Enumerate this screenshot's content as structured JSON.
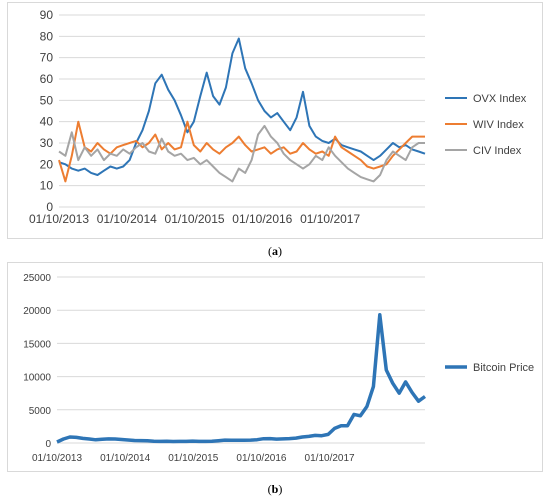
{
  "captions": {
    "a_open": "(",
    "a_letter": "a",
    "a_close": ")",
    "b_open": "(",
    "b_letter": "b",
    "b_close": ")"
  },
  "chart_data": [
    {
      "type": "line",
      "ylim": [
        0,
        90
      ],
      "yticks": [
        0,
        10,
        20,
        30,
        40,
        50,
        60,
        70,
        80,
        90
      ],
      "xtick_labels": [
        "01/10/2013",
        "01/10/2014",
        "01/10/2015",
        "01/10/2016",
        "01/10/2017"
      ],
      "x_range": [
        "2013-10",
        "2018-07"
      ],
      "grid": true,
      "legend_position": "right",
      "series": [
        {
          "name": "OVX Index",
          "color": "#2e75b6",
          "points": [
            [
              "2013-10",
              21
            ],
            [
              "2013-11",
              20
            ],
            [
              "2013-12",
              18
            ],
            [
              "2014-01",
              17
            ],
            [
              "2014-02",
              18
            ],
            [
              "2014-03",
              16
            ],
            [
              "2014-04",
              15
            ],
            [
              "2014-05",
              17
            ],
            [
              "2014-06",
              19
            ],
            [
              "2014-07",
              18
            ],
            [
              "2014-08",
              19
            ],
            [
              "2014-09",
              22
            ],
            [
              "2014-10",
              30
            ],
            [
              "2014-11",
              36
            ],
            [
              "2014-12",
              45
            ],
            [
              "2015-01",
              58
            ],
            [
              "2015-02",
              62
            ],
            [
              "2015-03",
              55
            ],
            [
              "2015-04",
              50
            ],
            [
              "2015-05",
              43
            ],
            [
              "2015-06",
              35
            ],
            [
              "2015-07",
              40
            ],
            [
              "2015-08",
              52
            ],
            [
              "2015-09",
              63
            ],
            [
              "2015-10",
              52
            ],
            [
              "2015-11",
              48
            ],
            [
              "2015-12",
              56
            ],
            [
              "2016-01",
              72
            ],
            [
              "2016-02",
              79
            ],
            [
              "2016-03",
              65
            ],
            [
              "2016-04",
              58
            ],
            [
              "2016-05",
              50
            ],
            [
              "2016-06",
              45
            ],
            [
              "2016-07",
              42
            ],
            [
              "2016-08",
              44
            ],
            [
              "2016-09",
              40
            ],
            [
              "2016-10",
              36
            ],
            [
              "2016-11",
              42
            ],
            [
              "2016-12",
              54
            ],
            [
              "2017-01",
              38
            ],
            [
              "2017-02",
              33
            ],
            [
              "2017-03",
              31
            ],
            [
              "2017-04",
              30
            ],
            [
              "2017-05",
              32
            ],
            [
              "2017-06",
              29
            ],
            [
              "2017-07",
              28
            ],
            [
              "2017-08",
              27
            ],
            [
              "2017-09",
              26
            ],
            [
              "2017-10",
              24
            ],
            [
              "2017-11",
              22
            ],
            [
              "2017-12",
              24
            ],
            [
              "2018-01",
              27
            ],
            [
              "2018-02",
              30
            ],
            [
              "2018-03",
              28
            ],
            [
              "2018-04",
              29
            ],
            [
              "2018-05",
              27
            ],
            [
              "2018-06",
              26
            ],
            [
              "2018-07",
              25
            ]
          ]
        },
        {
          "name": "WIV Index",
          "color": "#ed7d31",
          "points": [
            [
              "2013-10",
              22
            ],
            [
              "2013-11",
              12
            ],
            [
              "2013-12",
              24
            ],
            [
              "2014-01",
              40
            ],
            [
              "2014-02",
              28
            ],
            [
              "2014-03",
              26
            ],
            [
              "2014-04",
              30
            ],
            [
              "2014-05",
              27
            ],
            [
              "2014-06",
              25
            ],
            [
              "2014-07",
              28
            ],
            [
              "2014-08",
              29
            ],
            [
              "2014-09",
              30
            ],
            [
              "2014-10",
              31
            ],
            [
              "2014-11",
              28
            ],
            [
              "2014-12",
              30
            ],
            [
              "2015-01",
              34
            ],
            [
              "2015-02",
              27
            ],
            [
              "2015-03",
              30
            ],
            [
              "2015-04",
              27
            ],
            [
              "2015-05",
              28
            ],
            [
              "2015-06",
              40
            ],
            [
              "2015-07",
              29
            ],
            [
              "2015-08",
              26
            ],
            [
              "2015-09",
              30
            ],
            [
              "2015-10",
              27
            ],
            [
              "2015-11",
              25
            ],
            [
              "2015-12",
              28
            ],
            [
              "2016-01",
              30
            ],
            [
              "2016-02",
              33
            ],
            [
              "2016-03",
              29
            ],
            [
              "2016-04",
              26
            ],
            [
              "2016-05",
              27
            ],
            [
              "2016-06",
              28
            ],
            [
              "2016-07",
              25
            ],
            [
              "2016-08",
              27
            ],
            [
              "2016-09",
              28
            ],
            [
              "2016-10",
              25
            ],
            [
              "2016-11",
              26
            ],
            [
              "2016-12",
              30
            ],
            [
              "2017-01",
              27
            ],
            [
              "2017-02",
              25
            ],
            [
              "2017-03",
              26
            ],
            [
              "2017-04",
              24
            ],
            [
              "2017-05",
              33
            ],
            [
              "2017-06",
              28
            ],
            [
              "2017-07",
              26
            ],
            [
              "2017-08",
              24
            ],
            [
              "2017-09",
              22
            ],
            [
              "2017-10",
              19
            ],
            [
              "2017-11",
              18
            ],
            [
              "2017-12",
              19
            ],
            [
              "2018-01",
              20
            ],
            [
              "2018-02",
              24
            ],
            [
              "2018-03",
              27
            ],
            [
              "2018-04",
              30
            ],
            [
              "2018-05",
              33
            ],
            [
              "2018-06",
              33
            ],
            [
              "2018-07",
              33
            ]
          ]
        },
        {
          "name": "CIV Index",
          "color": "#a5a5a5",
          "points": [
            [
              "2013-10",
              26
            ],
            [
              "2013-11",
              24
            ],
            [
              "2013-12",
              35
            ],
            [
              "2014-01",
              22
            ],
            [
              "2014-02",
              28
            ],
            [
              "2014-03",
              24
            ],
            [
              "2014-04",
              27
            ],
            [
              "2014-05",
              22
            ],
            [
              "2014-06",
              25
            ],
            [
              "2014-07",
              24
            ],
            [
              "2014-08",
              27
            ],
            [
              "2014-09",
              25
            ],
            [
              "2014-10",
              28
            ],
            [
              "2014-11",
              30
            ],
            [
              "2014-12",
              26
            ],
            [
              "2015-01",
              25
            ],
            [
              "2015-02",
              32
            ],
            [
              "2015-03",
              26
            ],
            [
              "2015-04",
              24
            ],
            [
              "2015-05",
              25
            ],
            [
              "2015-06",
              22
            ],
            [
              "2015-07",
              23
            ],
            [
              "2015-08",
              20
            ],
            [
              "2015-09",
              22
            ],
            [
              "2015-10",
              19
            ],
            [
              "2015-11",
              16
            ],
            [
              "2015-12",
              14
            ],
            [
              "2016-01",
              12
            ],
            [
              "2016-02",
              18
            ],
            [
              "2016-03",
              16
            ],
            [
              "2016-04",
              22
            ],
            [
              "2016-05",
              34
            ],
            [
              "2016-06",
              38
            ],
            [
              "2016-07",
              33
            ],
            [
              "2016-08",
              30
            ],
            [
              "2016-09",
              25
            ],
            [
              "2016-10",
              22
            ],
            [
              "2016-11",
              20
            ],
            [
              "2016-12",
              18
            ],
            [
              "2017-01",
              20
            ],
            [
              "2017-02",
              24
            ],
            [
              "2017-03",
              22
            ],
            [
              "2017-04",
              28
            ],
            [
              "2017-05",
              24
            ],
            [
              "2017-06",
              21
            ],
            [
              "2017-07",
              18
            ],
            [
              "2017-08",
              16
            ],
            [
              "2017-09",
              14
            ],
            [
              "2017-10",
              13
            ],
            [
              "2017-11",
              12
            ],
            [
              "2017-12",
              15
            ],
            [
              "2018-01",
              22
            ],
            [
              "2018-02",
              26
            ],
            [
              "2018-03",
              24
            ],
            [
              "2018-04",
              22
            ],
            [
              "2018-05",
              28
            ],
            [
              "2018-06",
              30
            ],
            [
              "2018-07",
              30
            ]
          ]
        }
      ]
    },
    {
      "type": "line",
      "ylim": [
        0,
        25000
      ],
      "yticks": [
        0,
        5000,
        10000,
        15000,
        20000,
        25000
      ],
      "xtick_labels": [
        "01/10/2013",
        "01/10/2014",
        "01/10/2015",
        "01/10/2016",
        "01/10/2017"
      ],
      "x_range": [
        "2013-10",
        "2018-07"
      ],
      "grid": true,
      "legend_position": "right",
      "series": [
        {
          "name": "Bitcoin Price",
          "color": "#2e75b6",
          "points": [
            [
              "2013-10",
              150
            ],
            [
              "2013-11",
              600
            ],
            [
              "2013-12",
              900
            ],
            [
              "2014-01",
              850
            ],
            [
              "2014-02",
              700
            ],
            [
              "2014-03",
              600
            ],
            [
              "2014-04",
              480
            ],
            [
              "2014-05",
              550
            ],
            [
              "2014-06",
              620
            ],
            [
              "2014-07",
              600
            ],
            [
              "2014-08",
              520
            ],
            [
              "2014-09",
              450
            ],
            [
              "2014-10",
              380
            ],
            [
              "2014-11",
              360
            ],
            [
              "2014-12",
              330
            ],
            [
              "2015-01",
              250
            ],
            [
              "2015-02",
              240
            ],
            [
              "2015-03",
              260
            ],
            [
              "2015-04",
              230
            ],
            [
              "2015-05",
              240
            ],
            [
              "2015-06",
              245
            ],
            [
              "2015-07",
              280
            ],
            [
              "2015-08",
              240
            ],
            [
              "2015-09",
              235
            ],
            [
              "2015-10",
              270
            ],
            [
              "2015-11",
              350
            ],
            [
              "2015-12",
              430
            ],
            [
              "2016-01",
              410
            ],
            [
              "2016-02",
              400
            ],
            [
              "2016-03",
              415
            ],
            [
              "2016-04",
              440
            ],
            [
              "2016-05",
              500
            ],
            [
              "2016-06",
              650
            ],
            [
              "2016-07",
              660
            ],
            [
              "2016-08",
              580
            ],
            [
              "2016-09",
              610
            ],
            [
              "2016-10",
              660
            ],
            [
              "2016-11",
              740
            ],
            [
              "2016-12",
              900
            ],
            [
              "2017-01",
              1000
            ],
            [
              "2017-02",
              1150
            ],
            [
              "2017-03",
              1100
            ],
            [
              "2017-04",
              1300
            ],
            [
              "2017-05",
              2200
            ],
            [
              "2017-06",
              2600
            ],
            [
              "2017-07",
              2600
            ],
            [
              "2017-08",
              4300
            ],
            [
              "2017-09",
              4100
            ],
            [
              "2017-10",
              5500
            ],
            [
              "2017-11",
              8500
            ],
            [
              "2017-12",
              19300
            ],
            [
              "2018-01",
              11000
            ],
            [
              "2018-02",
              9000
            ],
            [
              "2018-03",
              7500
            ],
            [
              "2018-04",
              9200
            ],
            [
              "2018-05",
              7600
            ],
            [
              "2018-06",
              6300
            ],
            [
              "2018-07",
              7000
            ]
          ]
        }
      ]
    }
  ]
}
